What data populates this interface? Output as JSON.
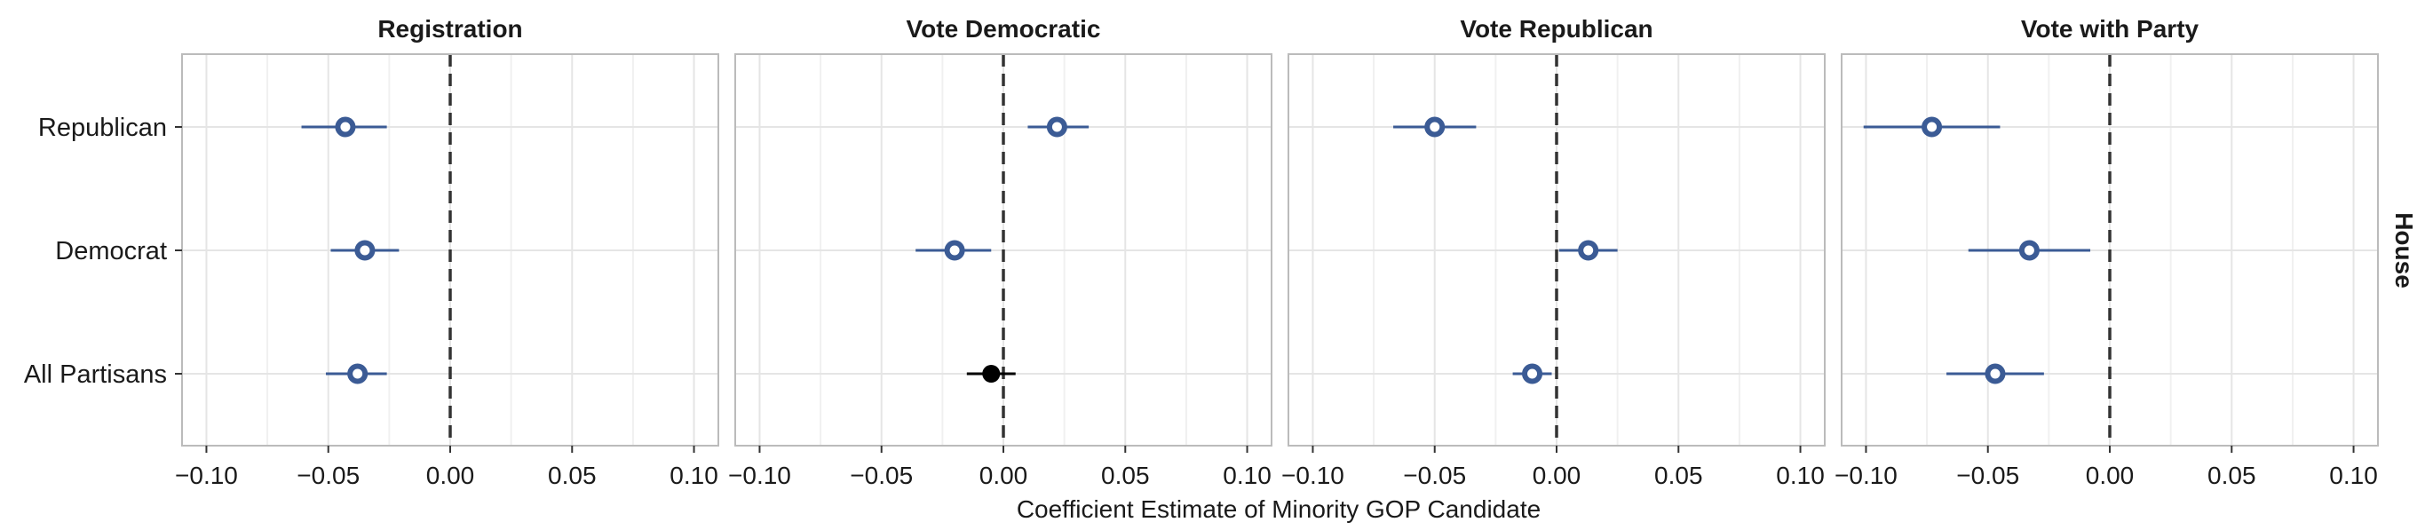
{
  "chart_data": {
    "type": "scatter",
    "subtype": "coefficient-plot-with-error-bars",
    "xlabel": "Coefficient Estimate of Minority GOP Candidate",
    "facet_strip_right": "House",
    "categories": [
      "Republican",
      "Democrat",
      "All Partisans"
    ],
    "xlim": [
      -0.11,
      0.11
    ],
    "x_ticks": [
      -0.1,
      -0.05,
      0.0,
      0.05,
      0.1
    ],
    "x_tick_labels": [
      "−0.10",
      "−0.05",
      "0.00",
      "0.05",
      "0.10"
    ],
    "reference_line": 0,
    "grid": true,
    "colors": {
      "series": "#3b5b95",
      "highlight": "#000000",
      "ref_line": "#333333",
      "grid": "#e5e5e5",
      "border": "#bbbbbb"
    },
    "panels": [
      {
        "title": "Registration",
        "points": [
          {
            "group": "Republican",
            "estimate": -0.043,
            "low": -0.061,
            "high": -0.026,
            "style": "hollow"
          },
          {
            "group": "Democrat",
            "estimate": -0.035,
            "low": -0.049,
            "high": -0.021,
            "style": "hollow"
          },
          {
            "group": "All Partisans",
            "estimate": -0.038,
            "low": -0.051,
            "high": -0.026,
            "style": "hollow"
          }
        ]
      },
      {
        "title": "Vote Democratic",
        "points": [
          {
            "group": "Republican",
            "estimate": 0.022,
            "low": 0.01,
            "high": 0.035,
            "style": "hollow"
          },
          {
            "group": "Democrat",
            "estimate": -0.02,
            "low": -0.036,
            "high": -0.005,
            "style": "hollow"
          },
          {
            "group": "All Partisans",
            "estimate": -0.005,
            "low": -0.015,
            "high": 0.005,
            "style": "solid"
          }
        ]
      },
      {
        "title": "Vote Republican",
        "points": [
          {
            "group": "Republican",
            "estimate": -0.05,
            "low": -0.067,
            "high": -0.033,
            "style": "hollow"
          },
          {
            "group": "Democrat",
            "estimate": 0.013,
            "low": 0.001,
            "high": 0.025,
            "style": "hollow"
          },
          {
            "group": "All Partisans",
            "estimate": -0.01,
            "low": -0.018,
            "high": -0.002,
            "style": "hollow"
          }
        ]
      },
      {
        "title": "Vote with Party",
        "points": [
          {
            "group": "Republican",
            "estimate": -0.073,
            "low": -0.101,
            "high": -0.045,
            "style": "hollow"
          },
          {
            "group": "Democrat",
            "estimate": -0.033,
            "low": -0.058,
            "high": -0.008,
            "style": "hollow"
          },
          {
            "group": "All Partisans",
            "estimate": -0.047,
            "low": -0.067,
            "high": -0.027,
            "style": "hollow"
          }
        ]
      }
    ]
  }
}
